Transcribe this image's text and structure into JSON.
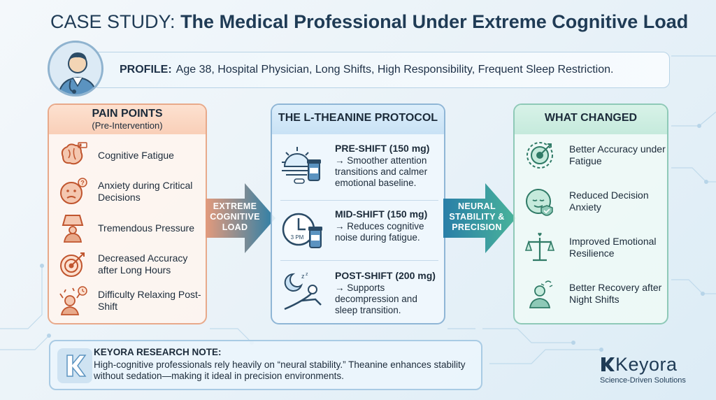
{
  "title": {
    "prefix": "CASE STUDY:",
    "main": "The Medical Professional Under Extreme Cognitive Load"
  },
  "profile": {
    "label": "PROFILE:",
    "text": "Age 38, Hospital Physician, Long Shifts, High Responsibility, Frequent Sleep Restriction."
  },
  "pain_points": {
    "title": "PAIN POINTS",
    "subtitle": "(Pre-Intervention)",
    "items": [
      {
        "label": "Cognitive Fatigue",
        "icon": "brain-battery-icon"
      },
      {
        "label": "Anxiety during Critical Decisions",
        "icon": "anxious-face-icon"
      },
      {
        "label": "Tremendous Pressure",
        "icon": "weight-pressure-icon"
      },
      {
        "label": "Decreased Accuracy after Long Hours",
        "icon": "target-icon"
      },
      {
        "label": "Difficulty Relaxing Post-Shift",
        "icon": "stressed-person-icon"
      }
    ]
  },
  "arrow_left": {
    "line1": "EXTREME",
    "line2": "COGNITIVE",
    "line3": "LOAD"
  },
  "protocol": {
    "title": "THE L-THEANINE PROTOCOL",
    "steps": [
      {
        "title": "PRE-SHIFT (150 mg)",
        "text": "→ Smoother attention transitions and calmer emotional baseline.",
        "icon": "sunrise-supplement-icon"
      },
      {
        "title": "MID-SHIFT (150 mg)",
        "text": "→ Reduces cognitive noise during fatigue.",
        "icon": "clock-supplement-icon",
        "clock_label": "3 PM"
      },
      {
        "title": "POST-SHIFT (200 mg)",
        "text": "→ Supports decompression and sleep transition.",
        "icon": "moon-relax-icon"
      }
    ]
  },
  "arrow_right": {
    "line1": "NEURAL",
    "line2": "STABILITY &",
    "line3": "PRECISION"
  },
  "changed": {
    "title": "WHAT CHANGED",
    "items": [
      {
        "label": "Better Accuracy under Fatigue",
        "icon": "brain-target-icon"
      },
      {
        "label": "Reduced Decision Anxiety",
        "icon": "calm-face-icon"
      },
      {
        "label": "Improved Emotional Resilience",
        "icon": "balance-scale-icon"
      },
      {
        "label": "Better Recovery after Night Shifts",
        "icon": "rested-person-icon"
      }
    ]
  },
  "note": {
    "title": "KEYORA RESEARCH NOTE:",
    "text": "High-cognitive professionals rely heavily on “neural stability.” Theanine enhances stability without sedation—making it ideal in precision environments."
  },
  "brand": {
    "name": "Keyora",
    "tagline": "Science-Driven Solutions"
  },
  "colors": {
    "pain": "#e8a98a",
    "protocol": "#8fb6d6",
    "changed": "#8ec9b7",
    "arrow": "#2a7fa8",
    "title": "#1f3b55"
  }
}
